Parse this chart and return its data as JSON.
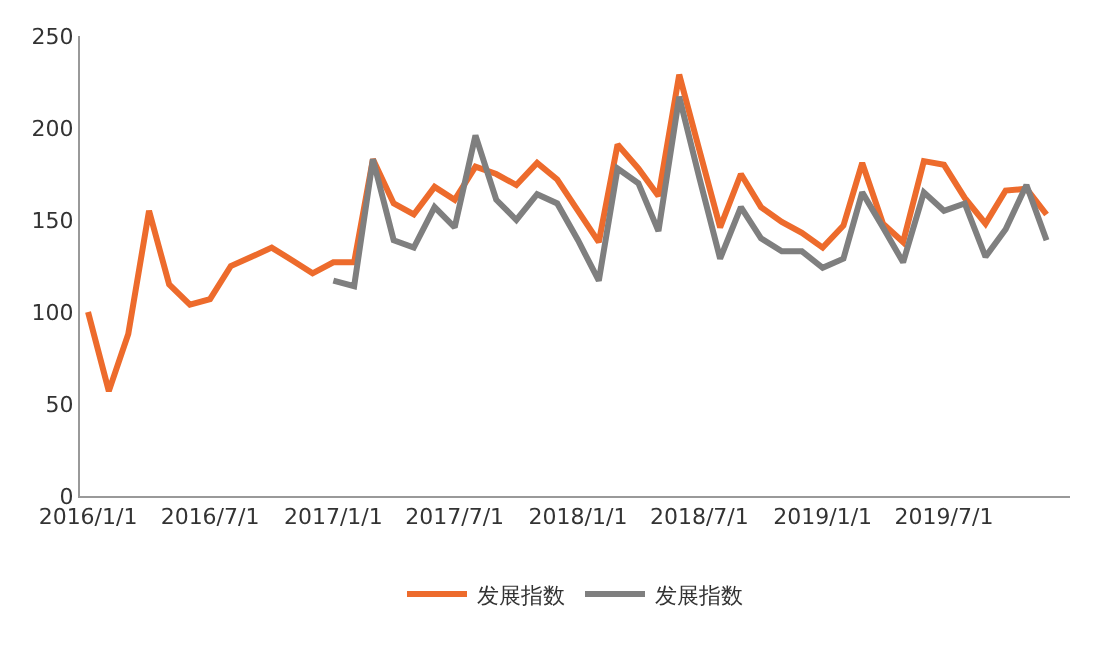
{
  "chart_data": {
    "type": "line",
    "x": [
      "2016-01",
      "2016-02",
      "2016-03",
      "2016-04",
      "2016-05",
      "2016-06",
      "2016-07",
      "2016-08",
      "2016-09",
      "2016-10",
      "2016-11",
      "2016-12",
      "2017-01",
      "2017-02",
      "2017-03",
      "2017-04",
      "2017-05",
      "2017-06",
      "2017-07",
      "2017-08",
      "2017-09",
      "2017-10",
      "2017-11",
      "2017-12",
      "2018-01",
      "2018-02",
      "2018-03",
      "2018-04",
      "2018-05",
      "2018-06",
      "2018-07",
      "2018-08",
      "2018-09",
      "2018-10",
      "2018-11",
      "2018-12",
      "2019-01",
      "2019-02",
      "2019-03",
      "2019-04",
      "2019-05",
      "2019-06",
      "2019-07",
      "2019-08",
      "2019-09",
      "2019-10",
      "2019-11",
      "2019-12"
    ],
    "series": [
      {
        "name": "发展指数",
        "color": "#ed6b2c",
        "values": [
          100,
          57,
          88,
          155,
          115,
          104,
          107,
          125,
          130,
          135,
          128,
          121,
          127,
          127,
          183,
          159,
          153,
          168,
          161,
          179,
          175,
          169,
          181,
          172,
          155,
          138,
          191,
          178,
          163,
          229,
          188,
          146,
          175,
          157,
          149,
          143,
          135,
          147,
          181,
          148,
          138,
          182,
          180,
          162,
          148,
          166,
          167,
          153
        ]
      },
      {
        "name": "发展指数",
        "color": "#7f7f7f",
        "values": [
          null,
          null,
          null,
          null,
          null,
          null,
          null,
          null,
          null,
          null,
          null,
          null,
          117,
          114,
          183,
          139,
          135,
          157,
          146,
          196,
          161,
          150,
          164,
          159,
          139,
          117,
          178,
          170,
          144,
          217,
          173,
          129,
          157,
          140,
          133,
          133,
          124,
          129,
          165,
          146,
          127,
          165,
          155,
          159,
          130,
          145,
          169,
          139
        ]
      }
    ],
    "xlim": [
      "2015-12-20",
      "2020-01-05"
    ],
    "xticks": [
      {
        "value": "2016-01-01",
        "label": "2016/1/1"
      },
      {
        "value": "2016-07-01",
        "label": "2016/7/1"
      },
      {
        "value": "2017-01-01",
        "label": "2017/1/1"
      },
      {
        "value": "2017-07-01",
        "label": "2017/7/1"
      },
      {
        "value": "2018-01-01",
        "label": "2018/1/1"
      },
      {
        "value": "2018-07-01",
        "label": "2018/7/1"
      },
      {
        "value": "2019-01-01",
        "label": "2019/1/1"
      },
      {
        "value": "2019-07-01",
        "label": "2019/7/1"
      }
    ],
    "ylim": [
      0,
      250
    ],
    "yticks": [
      0,
      50,
      100,
      150,
      200,
      250
    ],
    "legend": "bottom",
    "marker": "none",
    "line_style": "solid"
  }
}
